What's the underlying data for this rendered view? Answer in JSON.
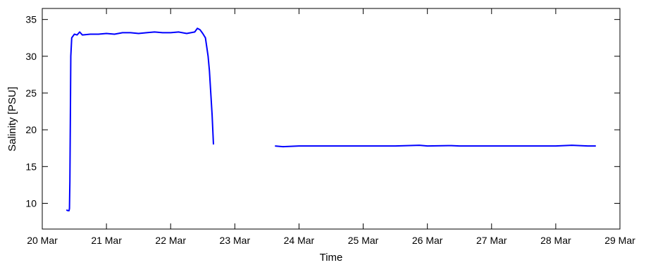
{
  "chart_data": {
    "type": "line",
    "title": "",
    "xlabel": "Time",
    "ylabel": "Salinity [PSU]",
    "x_tick_labels": [
      "20 Mar",
      "21 Mar",
      "22 Mar",
      "23 Mar",
      "24 Mar",
      "25 Mar",
      "26 Mar",
      "27 Mar",
      "28 Mar",
      "29 Mar"
    ],
    "xlim": [
      "2013-03-20",
      "2013-03-29"
    ],
    "ylim": [
      6.5,
      36.5
    ],
    "y_ticks": [
      10,
      15,
      20,
      25,
      30,
      35
    ],
    "grid": false,
    "legend": "none",
    "series": [
      {
        "color": "#0000ff",
        "segments": [
          [
            [
              "2013-03-20 09:00",
              9.1
            ],
            [
              "2013-03-20 09:40",
              9.0
            ],
            [
              "2013-03-20 10:00",
              9.0
            ],
            [
              "2013-03-20 10:10",
              9.3
            ],
            [
              "2013-03-20 10:20",
              13.0
            ],
            [
              "2013-03-20 10:30",
              22.0
            ],
            [
              "2013-03-20 10:40",
              30.0
            ],
            [
              "2013-03-20 11:00",
              32.5
            ],
            [
              "2013-03-20 12:00",
              33.0
            ],
            [
              "2013-03-20 13:00",
              32.9
            ],
            [
              "2013-03-20 14:00",
              33.3
            ],
            [
              "2013-03-20 15:00",
              32.9
            ],
            [
              "2013-03-20 18:00",
              33.0
            ],
            [
              "2013-03-20 21:00",
              33.0
            ],
            [
              "2013-03-21 00:00",
              33.1
            ],
            [
              "2013-03-21 03:00",
              33.0
            ],
            [
              "2013-03-21 06:00",
              33.2
            ],
            [
              "2013-03-21 09:00",
              33.2
            ],
            [
              "2013-03-21 12:00",
              33.1
            ],
            [
              "2013-03-21 15:00",
              33.2
            ],
            [
              "2013-03-21 18:00",
              33.3
            ],
            [
              "2013-03-21 21:00",
              33.2
            ],
            [
              "2013-03-22 00:00",
              33.2
            ],
            [
              "2013-03-22 03:00",
              33.3
            ],
            [
              "2013-03-22 06:00",
              33.1
            ],
            [
              "2013-03-22 09:00",
              33.3
            ],
            [
              "2013-03-22 10:00",
              33.8
            ],
            [
              "2013-03-22 11:00",
              33.6
            ],
            [
              "2013-03-22 12:00",
              33.1
            ],
            [
              "2013-03-22 13:00",
              32.5
            ],
            [
              "2013-03-22 14:00",
              30.0
            ],
            [
              "2013-03-22 14:30",
              28.0
            ],
            [
              "2013-03-22 15:00",
              25.0
            ],
            [
              "2013-03-22 15:30",
              22.0
            ],
            [
              "2013-03-22 16:00",
              18.0
            ]
          ],
          [
            [
              "2013-03-23 15:00",
              17.8
            ],
            [
              "2013-03-23 18:00",
              17.7
            ],
            [
              "2013-03-24 00:00",
              17.8
            ],
            [
              "2013-03-24 06:00",
              17.8
            ],
            [
              "2013-03-24 12:00",
              17.8
            ],
            [
              "2013-03-25 00:00",
              17.8
            ],
            [
              "2013-03-25 12:00",
              17.8
            ],
            [
              "2013-03-25 21:00",
              17.9
            ],
            [
              "2013-03-26 00:00",
              17.8
            ],
            [
              "2013-03-26 09:00",
              17.85
            ],
            [
              "2013-03-26 12:00",
              17.8
            ],
            [
              "2013-03-27 00:00",
              17.8
            ],
            [
              "2013-03-27 12:00",
              17.8
            ],
            [
              "2013-03-28 00:00",
              17.8
            ],
            [
              "2013-03-28 06:00",
              17.9
            ],
            [
              "2013-03-28 12:00",
              17.8
            ],
            [
              "2013-03-28 15:00",
              17.8
            ]
          ]
        ]
      }
    ]
  }
}
